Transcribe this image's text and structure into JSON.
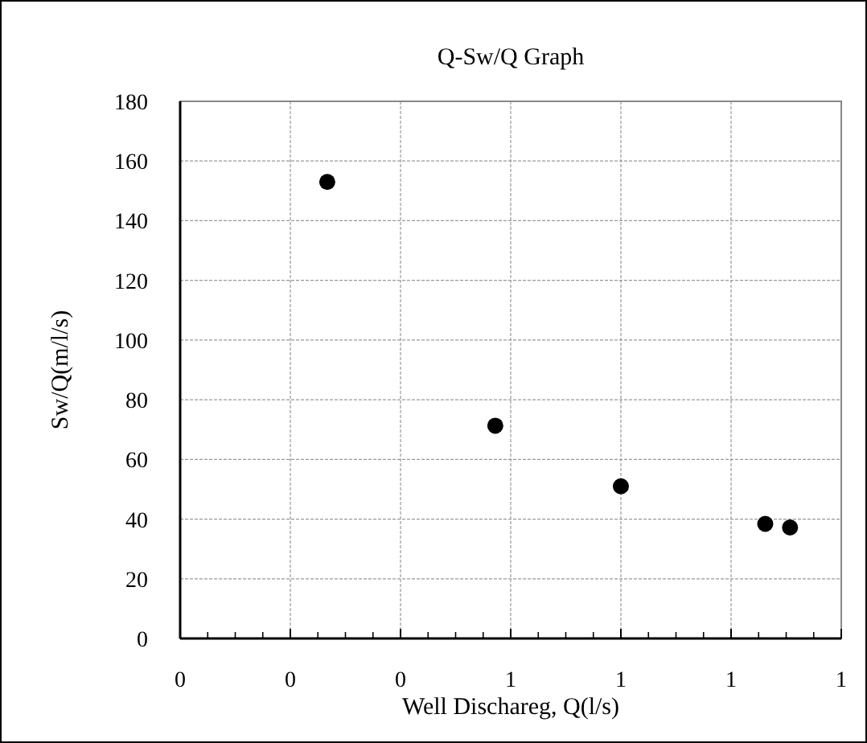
{
  "chart_data": {
    "type": "scatter",
    "title": "Q-Sw/Q Graph",
    "xlabel": "Well Dischareg, Q(l/s)",
    "ylabel": "Sw/Q(m/l/s)",
    "x": [
      0.267,
      0.572,
      0.8,
      1.062,
      1.107
    ],
    "series": [
      {
        "color": "#000000",
        "values": [
          153,
          71.3,
          51,
          38.4,
          37.2
        ]
      }
    ],
    "xlim": [
      0,
      1.2
    ],
    "xticks": [
      {
        "value": 0,
        "label": "0"
      },
      {
        "value": 0.2,
        "label": "0"
      },
      {
        "value": 0.4,
        "label": "0"
      },
      {
        "value": 0.6,
        "label": "1"
      },
      {
        "value": 0.8,
        "label": "1"
      },
      {
        "value": 1.0,
        "label": "1"
      },
      {
        "value": 1.2,
        "label": "1"
      }
    ],
    "ylim": [
      0,
      180
    ],
    "yticks": [
      0,
      20,
      40,
      60,
      80,
      100,
      120,
      140,
      160,
      180
    ],
    "grid": true,
    "marker": "circle"
  }
}
